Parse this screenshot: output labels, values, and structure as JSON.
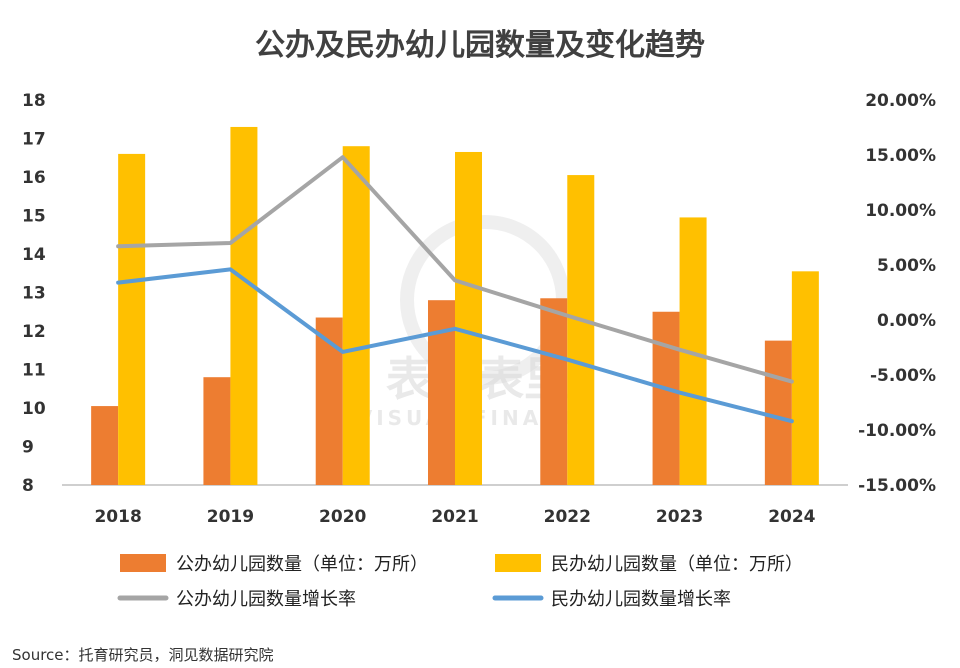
{
  "chart_data": {
    "type": "bar",
    "title": "公办及民办幼儿园数量及变化趋势",
    "categories": [
      "2018",
      "2019",
      "2020",
      "2021",
      "2022",
      "2023",
      "2024"
    ],
    "series": [
      {
        "name": "公办幼儿园数量（单位：万所）",
        "type": "bar",
        "axis": "left",
        "color": "#ED7D31",
        "values": [
          10.05,
          10.8,
          12.35,
          12.8,
          12.85,
          12.5,
          11.75
        ]
      },
      {
        "name": "民办幼儿园数量（单位：万所）",
        "type": "bar",
        "axis": "left",
        "color": "#FFC000",
        "values": [
          16.6,
          17.3,
          16.8,
          16.65,
          16.05,
          14.95,
          13.55
        ]
      },
      {
        "name": "公办幼儿园数量增长率",
        "type": "line",
        "axis": "right",
        "color": "#A5A5A5",
        "values": [
          6.7,
          7.0,
          14.8,
          3.6,
          0.4,
          -2.7,
          -5.6
        ]
      },
      {
        "name": "民办幼儿园数量增长率",
        "type": "line",
        "axis": "right",
        "color": "#5B9BD5",
        "values": [
          3.4,
          4.6,
          -2.9,
          -0.8,
          -3.6,
          -6.6,
          -9.2
        ]
      }
    ],
    "y_left": {
      "min": 8,
      "max": 18,
      "ticks": [
        "8",
        "9",
        "10",
        "11",
        "12",
        "13",
        "14",
        "15",
        "16",
        "17",
        "18"
      ]
    },
    "y_right": {
      "min": -15,
      "max": 20,
      "ticks": [
        "-15.00%",
        "-10.00%",
        "-5.00%",
        "0.00%",
        "5.00%",
        "10.00%",
        "15.00%",
        "20.00%"
      ]
    },
    "legend_position": "bottom",
    "grid": false
  },
  "watermark": {
    "line1": "表外表里",
    "line2": "VISUAL FINANCE"
  },
  "source": "Source：托育研究员，洞见数据研究院"
}
